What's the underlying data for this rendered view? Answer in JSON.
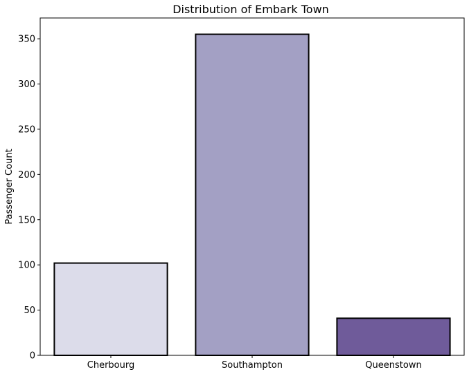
{
  "chart_data": {
    "type": "bar",
    "title": "Distribution of Embark Town",
    "xlabel": "",
    "ylabel": "Passenger Count",
    "categories": [
      "Cherbourg",
      "Southampton",
      "Queenstown"
    ],
    "values": [
      102,
      355,
      41
    ],
    "ylim": [
      0,
      373
    ],
    "yticks": [
      0,
      50,
      100,
      150,
      200,
      250,
      300,
      350
    ],
    "colors": [
      "#dcdcea",
      "#a3a0c4",
      "#6f5b9a"
    ],
    "edge_color": "#000000",
    "grid": false,
    "legend": "none"
  }
}
